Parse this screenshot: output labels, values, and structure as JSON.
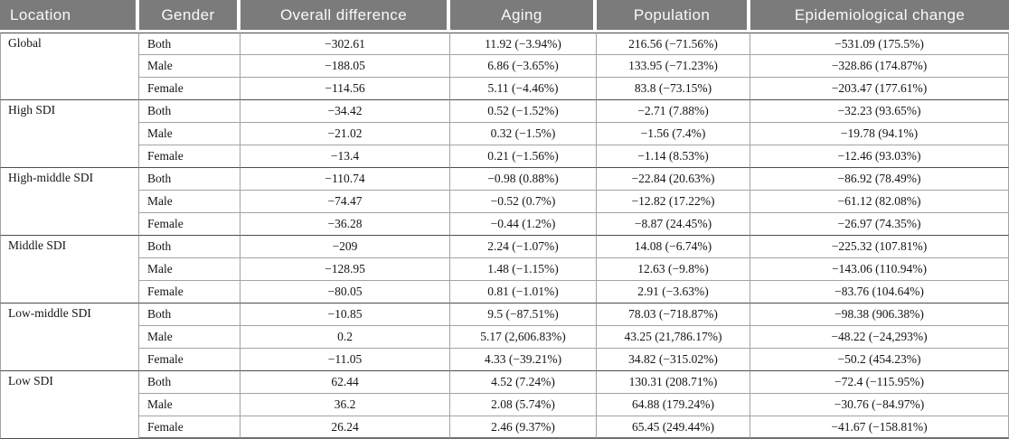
{
  "table": {
    "columns": [
      "Location",
      "Gender",
      "Overall difference",
      "Aging",
      "Population",
      "Epidemiological change"
    ],
    "colors": {
      "header_background": "#7b7b7b",
      "header_text": "#fafafa",
      "body_text": "#141414",
      "inner_border": "#a3a3a3",
      "group_border": "#4d4d4d"
    },
    "groups": [
      {
        "location": "Global",
        "rows": [
          {
            "gender": "Both",
            "overall": "−302.61",
            "aging": "11.92 (−3.94%)",
            "population": "216.56 (−71.56%)",
            "epi": "−531.09 (175.5%)"
          },
          {
            "gender": "Male",
            "overall": "−188.05",
            "aging": "6.86 (−3.65%)",
            "population": "133.95 (−71.23%)",
            "epi": "−328.86 (174.87%)"
          },
          {
            "gender": "Female",
            "overall": "−114.56",
            "aging": "5.11 (−4.46%)",
            "population": "83.8 (−73.15%)",
            "epi": "−203.47 (177.61%)"
          }
        ]
      },
      {
        "location": "High SDI",
        "rows": [
          {
            "gender": "Both",
            "overall": "−34.42",
            "aging": "0.52 (−1.52%)",
            "population": "−2.71 (7.88%)",
            "epi": "−32.23 (93.65%)"
          },
          {
            "gender": "Male",
            "overall": "−21.02",
            "aging": "0.32 (−1.5%)",
            "population": "−1.56 (7.4%)",
            "epi": "−19.78 (94.1%)"
          },
          {
            "gender": "Female",
            "overall": "−13.4",
            "aging": "0.21 (−1.56%)",
            "population": "−1.14 (8.53%)",
            "epi": "−12.46 (93.03%)"
          }
        ]
      },
      {
        "location": "High-middle SDI",
        "rows": [
          {
            "gender": "Both",
            "overall": "−110.74",
            "aging": "−0.98 (0.88%)",
            "population": "−22.84 (20.63%)",
            "epi": "−86.92 (78.49%)"
          },
          {
            "gender": "Male",
            "overall": "−74.47",
            "aging": "−0.52 (0.7%)",
            "population": "−12.82 (17.22%)",
            "epi": "−61.12 (82.08%)"
          },
          {
            "gender": "Female",
            "overall": "−36.28",
            "aging": "−0.44 (1.2%)",
            "population": "−8.87 (24.45%)",
            "epi": "−26.97 (74.35%)"
          }
        ]
      },
      {
        "location": "Middle SDI",
        "rows": [
          {
            "gender": "Both",
            "overall": "−209",
            "aging": "2.24 (−1.07%)",
            "population": "14.08 (−6.74%)",
            "epi": "−225.32 (107.81%)"
          },
          {
            "gender": "Male",
            "overall": "−128.95",
            "aging": "1.48 (−1.15%)",
            "population": "12.63 (−9.8%)",
            "epi": "−143.06 (110.94%)"
          },
          {
            "gender": "Female",
            "overall": "−80.05",
            "aging": "0.81 (−1.01%)",
            "population": "2.91 (−3.63%)",
            "epi": "−83.76 (104.64%)"
          }
        ]
      },
      {
        "location": "Low-middle SDI",
        "rows": [
          {
            "gender": "Both",
            "overall": "−10.85",
            "aging": "9.5 (−87.51%)",
            "population": "78.03 (−718.87%)",
            "epi": "−98.38 (906.38%)"
          },
          {
            "gender": "Male",
            "overall": "0.2",
            "aging": "5.17 (2,606.83%)",
            "population": "43.25 (21,786.17%)",
            "epi": "−48.22 (−24,293%)"
          },
          {
            "gender": "Female",
            "overall": "−11.05",
            "aging": "4.33 (−39.21%)",
            "population": "34.82 (−315.02%)",
            "epi": "−50.2 (454.23%)"
          }
        ]
      },
      {
        "location": "Low SDI",
        "rows": [
          {
            "gender": "Both",
            "overall": "62.44",
            "aging": "4.52 (7.24%)",
            "population": "130.31 (208.71%)",
            "epi": "−72.4 (−115.95%)"
          },
          {
            "gender": "Male",
            "overall": "36.2",
            "aging": "2.08 (5.74%)",
            "population": "64.88 (179.24%)",
            "epi": "−30.76 (−84.97%)"
          },
          {
            "gender": "Female",
            "overall": "26.24",
            "aging": "2.46 (9.37%)",
            "population": "65.45 (249.44%)",
            "epi": "−41.67 (−158.81%)"
          }
        ]
      }
    ]
  }
}
